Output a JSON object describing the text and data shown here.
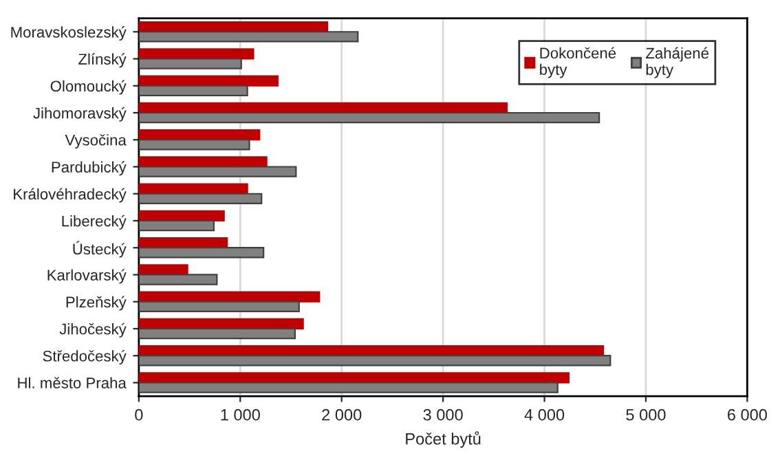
{
  "chart_data": {
    "type": "bar",
    "orientation": "horizontal",
    "xlabel": "Počet bytů",
    "categories": [
      "Moravskoslezský",
      "Zlínský",
      "Olomoucký",
      "Jihomoravský",
      "Vysočina",
      "Pardubický",
      "Královéhradecký",
      "Liberecký",
      "Ústecký",
      "Karlovarský",
      "Plzeňský",
      "Jihočeský",
      "Středočeský",
      "Hl. město Praha"
    ],
    "series": [
      {
        "name": "Dokončené\nbyty",
        "color": "#c00000",
        "values": [
          1860,
          1130,
          1370,
          3630,
          1190,
          1260,
          1070,
          840,
          870,
          480,
          1780,
          1620,
          4580,
          4240
        ]
      },
      {
        "name": "Zahájené\nbyty",
        "color": "#808080",
        "values": [
          2160,
          1010,
          1070,
          4540,
          1090,
          1550,
          1210,
          740,
          1230,
          770,
          1580,
          1540,
          4650,
          4130
        ]
      }
    ],
    "xlim": [
      0,
      6000
    ],
    "xticks": [
      {
        "value": 0,
        "label": "0"
      },
      {
        "value": 1000,
        "label": "1 000"
      },
      {
        "value": 2000,
        "label": "2 000"
      },
      {
        "value": 3000,
        "label": "3 000"
      },
      {
        "value": 4000,
        "label": "4 000"
      },
      {
        "value": 5000,
        "label": "5 000"
      },
      {
        "value": 6000,
        "label": "6 000"
      }
    ],
    "grid": "x",
    "legend": "top right"
  }
}
